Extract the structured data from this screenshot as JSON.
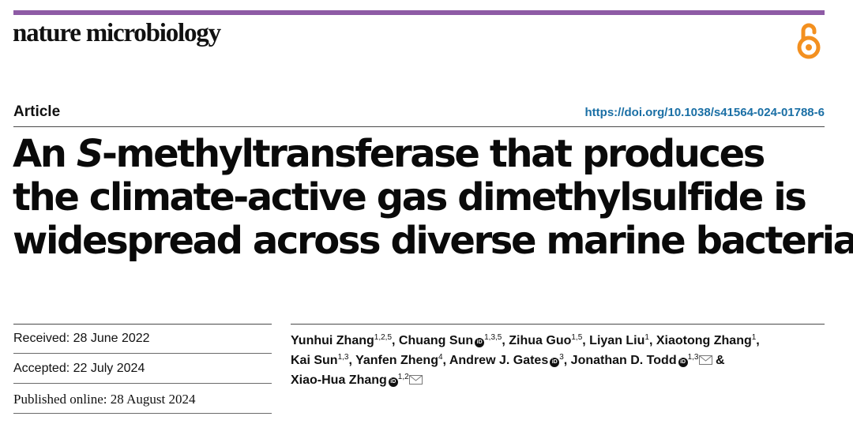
{
  "journal": {
    "name": "nature microbiology",
    "accent_color": "#8e5ba5",
    "open_access_icon": "open-access-lock-icon",
    "open_access_color": "#f39020"
  },
  "article": {
    "type": "Article",
    "doi": "https://doi.org/10.1038/s41564-024-01788-6",
    "title": {
      "part1": "An ",
      "italic": "S",
      "part2": "-methyltransferase that produces",
      "line2": "the climate-active gas dimethylsulfide is",
      "line3": "widespread across diverse marine bacteria"
    }
  },
  "dates": {
    "received": "Received: 28 June 2022",
    "accepted": "Accepted: 22 July 2024",
    "published": "Published online: 28 August 2024"
  },
  "authors": [
    {
      "name": "Yunhui Zhang",
      "aff": "1,2,5",
      "orcid": false,
      "email": false,
      "sep": ", "
    },
    {
      "name": "Chuang Sun",
      "aff": "1,3,5",
      "orcid": true,
      "email": false,
      "sep": ", "
    },
    {
      "name": "Zihua Guo",
      "aff": "1,5",
      "orcid": false,
      "email": false,
      "sep": ", "
    },
    {
      "name": "Liyan Liu",
      "aff": "1",
      "orcid": false,
      "email": false,
      "sep": ", "
    },
    {
      "name": "Xiaotong Zhang",
      "aff": "1",
      "orcid": false,
      "email": false,
      "sep": ","
    },
    {
      "name": "Kai Sun",
      "aff": "1,3",
      "orcid": false,
      "email": false,
      "sep": ", "
    },
    {
      "name": "Yanfen Zheng",
      "aff": "4",
      "orcid": false,
      "email": false,
      "sep": ", "
    },
    {
      "name": "Andrew J. Gates",
      "aff": "3",
      "orcid": true,
      "email": false,
      "sep": ", "
    },
    {
      "name": "Jonathan D. Todd",
      "aff": "1,3",
      "orcid": true,
      "email": true,
      "sep": " &"
    },
    {
      "name": "Xiao-Hua Zhang",
      "aff": "1,2",
      "orcid": true,
      "email": true,
      "sep": ""
    }
  ]
}
